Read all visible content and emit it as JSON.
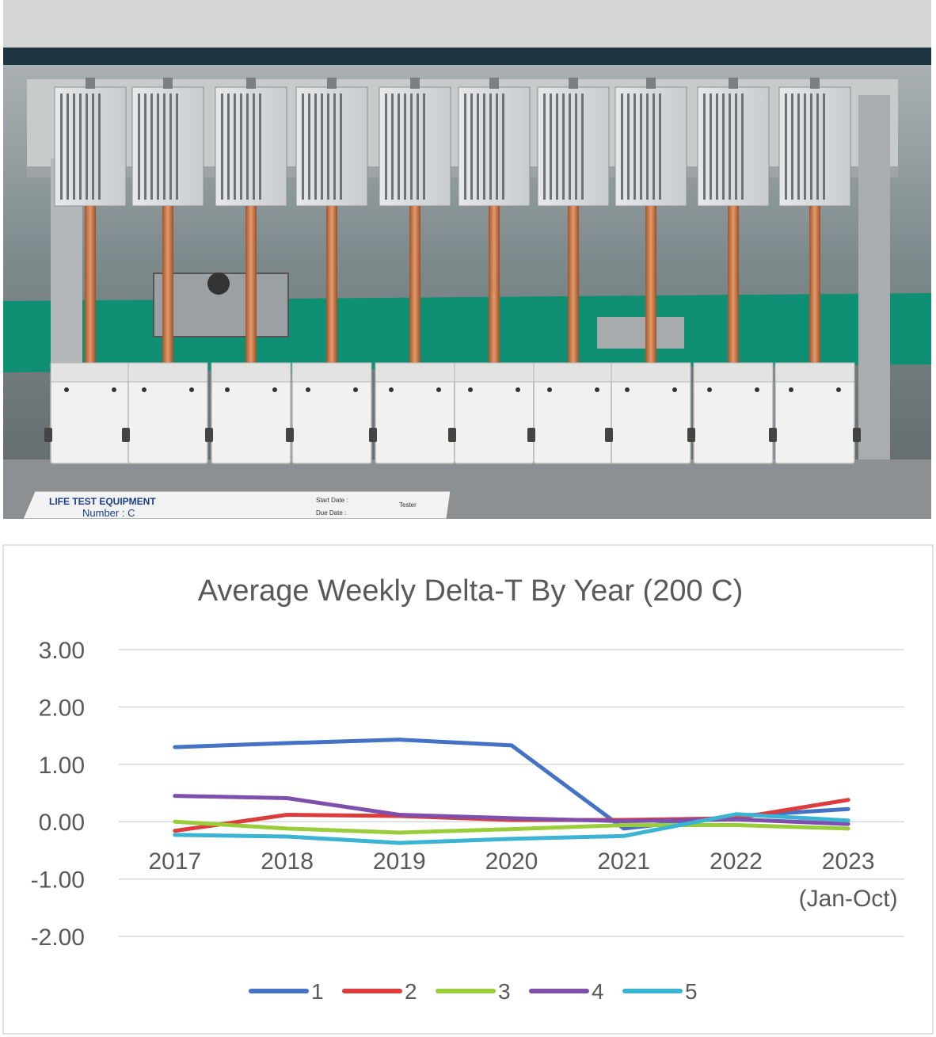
{
  "photo": {
    "sign_line1": "LIFE TEST EQUIPMENT",
    "sign_line2": "Number : C",
    "sign_field_start": "Start Date :",
    "sign_field_due": "Due Date :",
    "sign_field_tester": "Tester"
  },
  "chart_data": {
    "type": "line",
    "title": "Average Weekly Delta-T By Year (200 C)",
    "categories": [
      "2017",
      "2018",
      "2019",
      "2020",
      "2021",
      "2022",
      "2023"
    ],
    "category_sublabels": [
      "",
      "",
      "",
      "",
      "",
      "",
      "(Jan-Oct)"
    ],
    "ylim": [
      -2.0,
      3.0
    ],
    "yticks": [
      "3.00",
      "2.00",
      "1.00",
      "0.00",
      "-1.00",
      "-2.00"
    ],
    "grid": true,
    "legend_position": "bottom",
    "series": [
      {
        "name": "1",
        "color": "#4472C4",
        "values": [
          1.3,
          1.37,
          1.43,
          1.33,
          -0.12,
          0.1,
          0.22
        ]
      },
      {
        "name": "2",
        "color": "#DC3C3C",
        "values": [
          -0.16,
          0.12,
          0.1,
          0.03,
          0.03,
          0.06,
          0.38
        ]
      },
      {
        "name": "3",
        "color": "#9ACD3C",
        "values": [
          0.0,
          -0.12,
          -0.19,
          -0.13,
          -0.06,
          -0.06,
          -0.12
        ]
      },
      {
        "name": "4",
        "color": "#7F4FAE",
        "values": [
          0.45,
          0.41,
          0.12,
          0.06,
          0.01,
          0.04,
          -0.04
        ]
      },
      {
        "name": "5",
        "color": "#3AB4D2",
        "values": [
          -0.23,
          -0.26,
          -0.37,
          -0.3,
          -0.25,
          0.13,
          0.02
        ]
      }
    ]
  }
}
